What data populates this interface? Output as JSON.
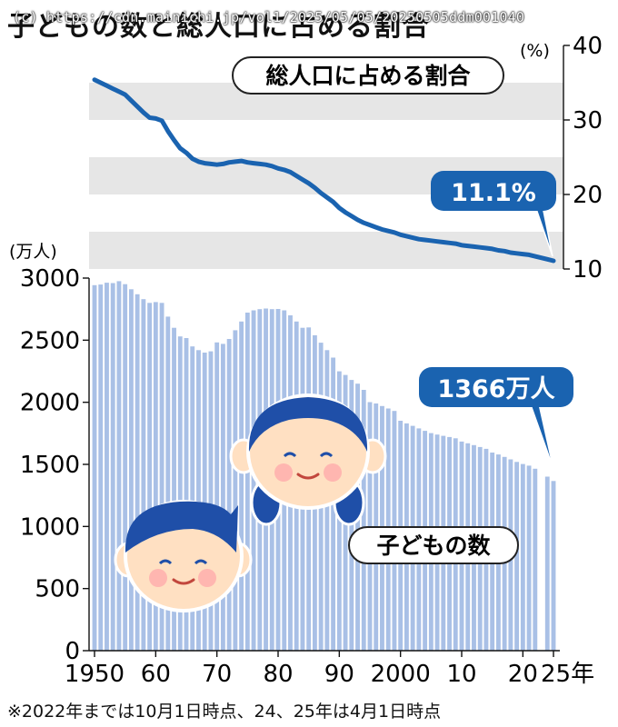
{
  "title": "子どもの数と総人口に占める割合",
  "watermark": "(c) https://cdn.mainichi.jp/vol1/2025/05/05/20250505ddm001040",
  "footnote": "※2022年までは10月1日時点、24、25年は4月1日時点",
  "colors": {
    "bars": "#a9c0e6",
    "bars_stroke": "#8aa6d8",
    "line": "#1a63b0",
    "callout": "#1a63b0",
    "band": "#e6e6e6",
    "face": "#ffe0c2",
    "hair": "#1f4fa8"
  },
  "chart_data": {
    "type": "bar+line",
    "line_series": {
      "label": "総人口に占める割合",
      "unit": "(%)",
      "ylim": [
        10,
        40
      ],
      "ticks": [
        "10",
        "20",
        "30",
        "40"
      ],
      "callout": "11.1%",
      "x": [
        1950,
        1951,
        1952,
        1953,
        1954,
        1955,
        1956,
        1957,
        1958,
        1959,
        1960,
        1961,
        1962,
        1963,
        1964,
        1965,
        1966,
        1967,
        1968,
        1969,
        1970,
        1971,
        1972,
        1973,
        1974,
        1975,
        1976,
        1977,
        1978,
        1979,
        1980,
        1981,
        1982,
        1983,
        1984,
        1985,
        1986,
        1987,
        1988,
        1989,
        1990,
        1991,
        1992,
        1993,
        1994,
        1995,
        1996,
        1997,
        1998,
        1999,
        2000,
        2001,
        2002,
        2003,
        2004,
        2005,
        2006,
        2007,
        2008,
        2009,
        2010,
        2011,
        2012,
        2013,
        2014,
        2015,
        2016,
        2017,
        2018,
        2019,
        2020,
        2021,
        2022,
        2024,
        2025
      ],
      "values": [
        35.4,
        35.0,
        34.6,
        34.2,
        33.8,
        33.4,
        32.6,
        31.8,
        31.0,
        30.3,
        30.2,
        29.9,
        28.5,
        27.3,
        26.2,
        25.6,
        24.8,
        24.4,
        24.2,
        24.1,
        24.0,
        24.1,
        24.3,
        24.4,
        24.5,
        24.3,
        24.2,
        24.1,
        24.0,
        23.8,
        23.5,
        23.3,
        23.0,
        22.5,
        22.0,
        21.5,
        20.9,
        20.2,
        19.6,
        19.0,
        18.2,
        17.6,
        17.1,
        16.6,
        16.2,
        15.9,
        15.6,
        15.3,
        15.1,
        14.9,
        14.6,
        14.4,
        14.2,
        14.0,
        13.9,
        13.8,
        13.7,
        13.6,
        13.5,
        13.4,
        13.2,
        13.1,
        13.0,
        12.9,
        12.8,
        12.7,
        12.5,
        12.4,
        12.2,
        12.1,
        12.0,
        11.9,
        11.7,
        11.3,
        11.1
      ]
    },
    "bar_series": {
      "label": "子どもの数",
      "unit": "(万人)",
      "ylim": [
        0,
        3000
      ],
      "ticks": [
        "0",
        "500",
        "1000",
        "1500",
        "2000",
        "2500",
        "3000"
      ],
      "callout": "1366万人",
      "x": [
        1950,
        1951,
        1952,
        1953,
        1954,
        1955,
        1956,
        1957,
        1958,
        1959,
        1960,
        1961,
        1962,
        1963,
        1964,
        1965,
        1966,
        1967,
        1968,
        1969,
        1970,
        1971,
        1972,
        1973,
        1974,
        1975,
        1976,
        1977,
        1978,
        1979,
        1980,
        1981,
        1982,
        1983,
        1984,
        1985,
        1986,
        1987,
        1988,
        1989,
        1990,
        1991,
        1992,
        1993,
        1994,
        1995,
        1996,
        1997,
        1998,
        1999,
        2000,
        2001,
        2002,
        2003,
        2004,
        2005,
        2006,
        2007,
        2008,
        2009,
        2010,
        2011,
        2012,
        2013,
        2014,
        2015,
        2016,
        2017,
        2018,
        2019,
        2020,
        2021,
        2022,
        2024,
        2025
      ],
      "values": [
        2943,
        2948,
        2963,
        2960,
        2975,
        2951,
        2910,
        2870,
        2830,
        2800,
        2807,
        2800,
        2690,
        2600,
        2530,
        2517,
        2450,
        2420,
        2400,
        2410,
        2482,
        2470,
        2510,
        2580,
        2650,
        2722,
        2740,
        2750,
        2755,
        2750,
        2751,
        2740,
        2700,
        2650,
        2600,
        2603,
        2540,
        2480,
        2420,
        2360,
        2249,
        2220,
        2180,
        2150,
        2100,
        2001,
        1990,
        1970,
        1950,
        1930,
        1851,
        1830,
        1810,
        1790,
        1770,
        1752,
        1740,
        1730,
        1720,
        1710,
        1684,
        1670,
        1655,
        1640,
        1625,
        1595,
        1580,
        1560,
        1540,
        1520,
        1503,
        1490,
        1465,
        1401,
        1366
      ]
    },
    "x_tick_labels": [
      {
        "year": 1950,
        "label": "1950"
      },
      {
        "year": 1960,
        "label": "60"
      },
      {
        "year": 1970,
        "label": "70"
      },
      {
        "year": 1980,
        "label": "80"
      },
      {
        "year": 1990,
        "label": "90"
      },
      {
        "year": 2000,
        "label": "2000"
      },
      {
        "year": 2010,
        "label": "10"
      },
      {
        "year": 2020,
        "label": "20"
      },
      {
        "year": 2025,
        "label": "25年"
      }
    ]
  }
}
